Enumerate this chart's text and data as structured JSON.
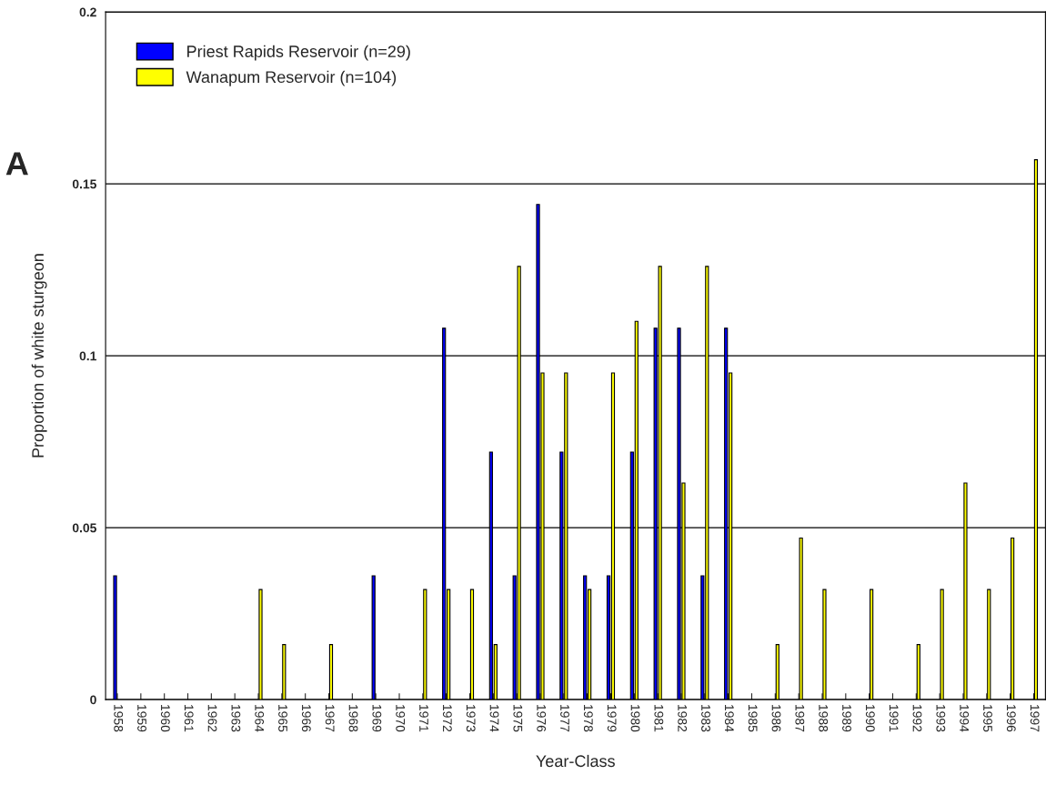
{
  "chart_data": {
    "type": "bar",
    "xlabel": "Year-Class",
    "ylabel": "Proportion of white sturgeon",
    "annotations": [
      "A"
    ],
    "categories": [
      "1958",
      "1959",
      "1960",
      "1961",
      "1962",
      "1963",
      "1964",
      "1965",
      "1966",
      "1967",
      "1968",
      "1969",
      "1970",
      "1971",
      "1972",
      "1973",
      "1974",
      "1975",
      "1976",
      "1977",
      "1978",
      "1979",
      "1980",
      "1981",
      "1982",
      "1983",
      "1984",
      "1985",
      "1986",
      "1987",
      "1988",
      "1989",
      "1990",
      "1991",
      "1992",
      "1993",
      "1994",
      "1995",
      "1996",
      "1997"
    ],
    "series": [
      {
        "name": "Priest Rapids Reservoir (n=29)",
        "color": "#0000ff",
        "values": [
          0.036,
          null,
          null,
          null,
          null,
          null,
          null,
          null,
          null,
          null,
          null,
          0.036,
          null,
          null,
          0.108,
          null,
          0.072,
          0.036,
          0.144,
          0.072,
          0.036,
          0.036,
          0.072,
          0.108,
          0.108,
          0.036,
          0.108,
          null,
          null,
          null,
          null,
          null,
          null,
          null,
          null,
          null,
          null,
          null,
          null,
          null
        ]
      },
      {
        "name": "Wanapum Reservoir (n=104)",
        "color": "#ffff00",
        "values": [
          null,
          null,
          null,
          null,
          null,
          null,
          0.032,
          0.016,
          null,
          0.016,
          null,
          null,
          null,
          0.032,
          0.032,
          0.032,
          0.016,
          0.126,
          0.095,
          0.095,
          0.032,
          0.095,
          0.11,
          0.126,
          0.063,
          0.126,
          0.095,
          null,
          0.016,
          0.047,
          0.032,
          null,
          0.032,
          null,
          0.016,
          0.032,
          0.063,
          0.032,
          0.047,
          0.157
        ]
      }
    ],
    "ylim": [
      0,
      0.2
    ],
    "yticks": [
      0,
      0.05,
      0.1,
      0.15,
      0.2
    ],
    "grid": "y",
    "legend": "top left"
  }
}
